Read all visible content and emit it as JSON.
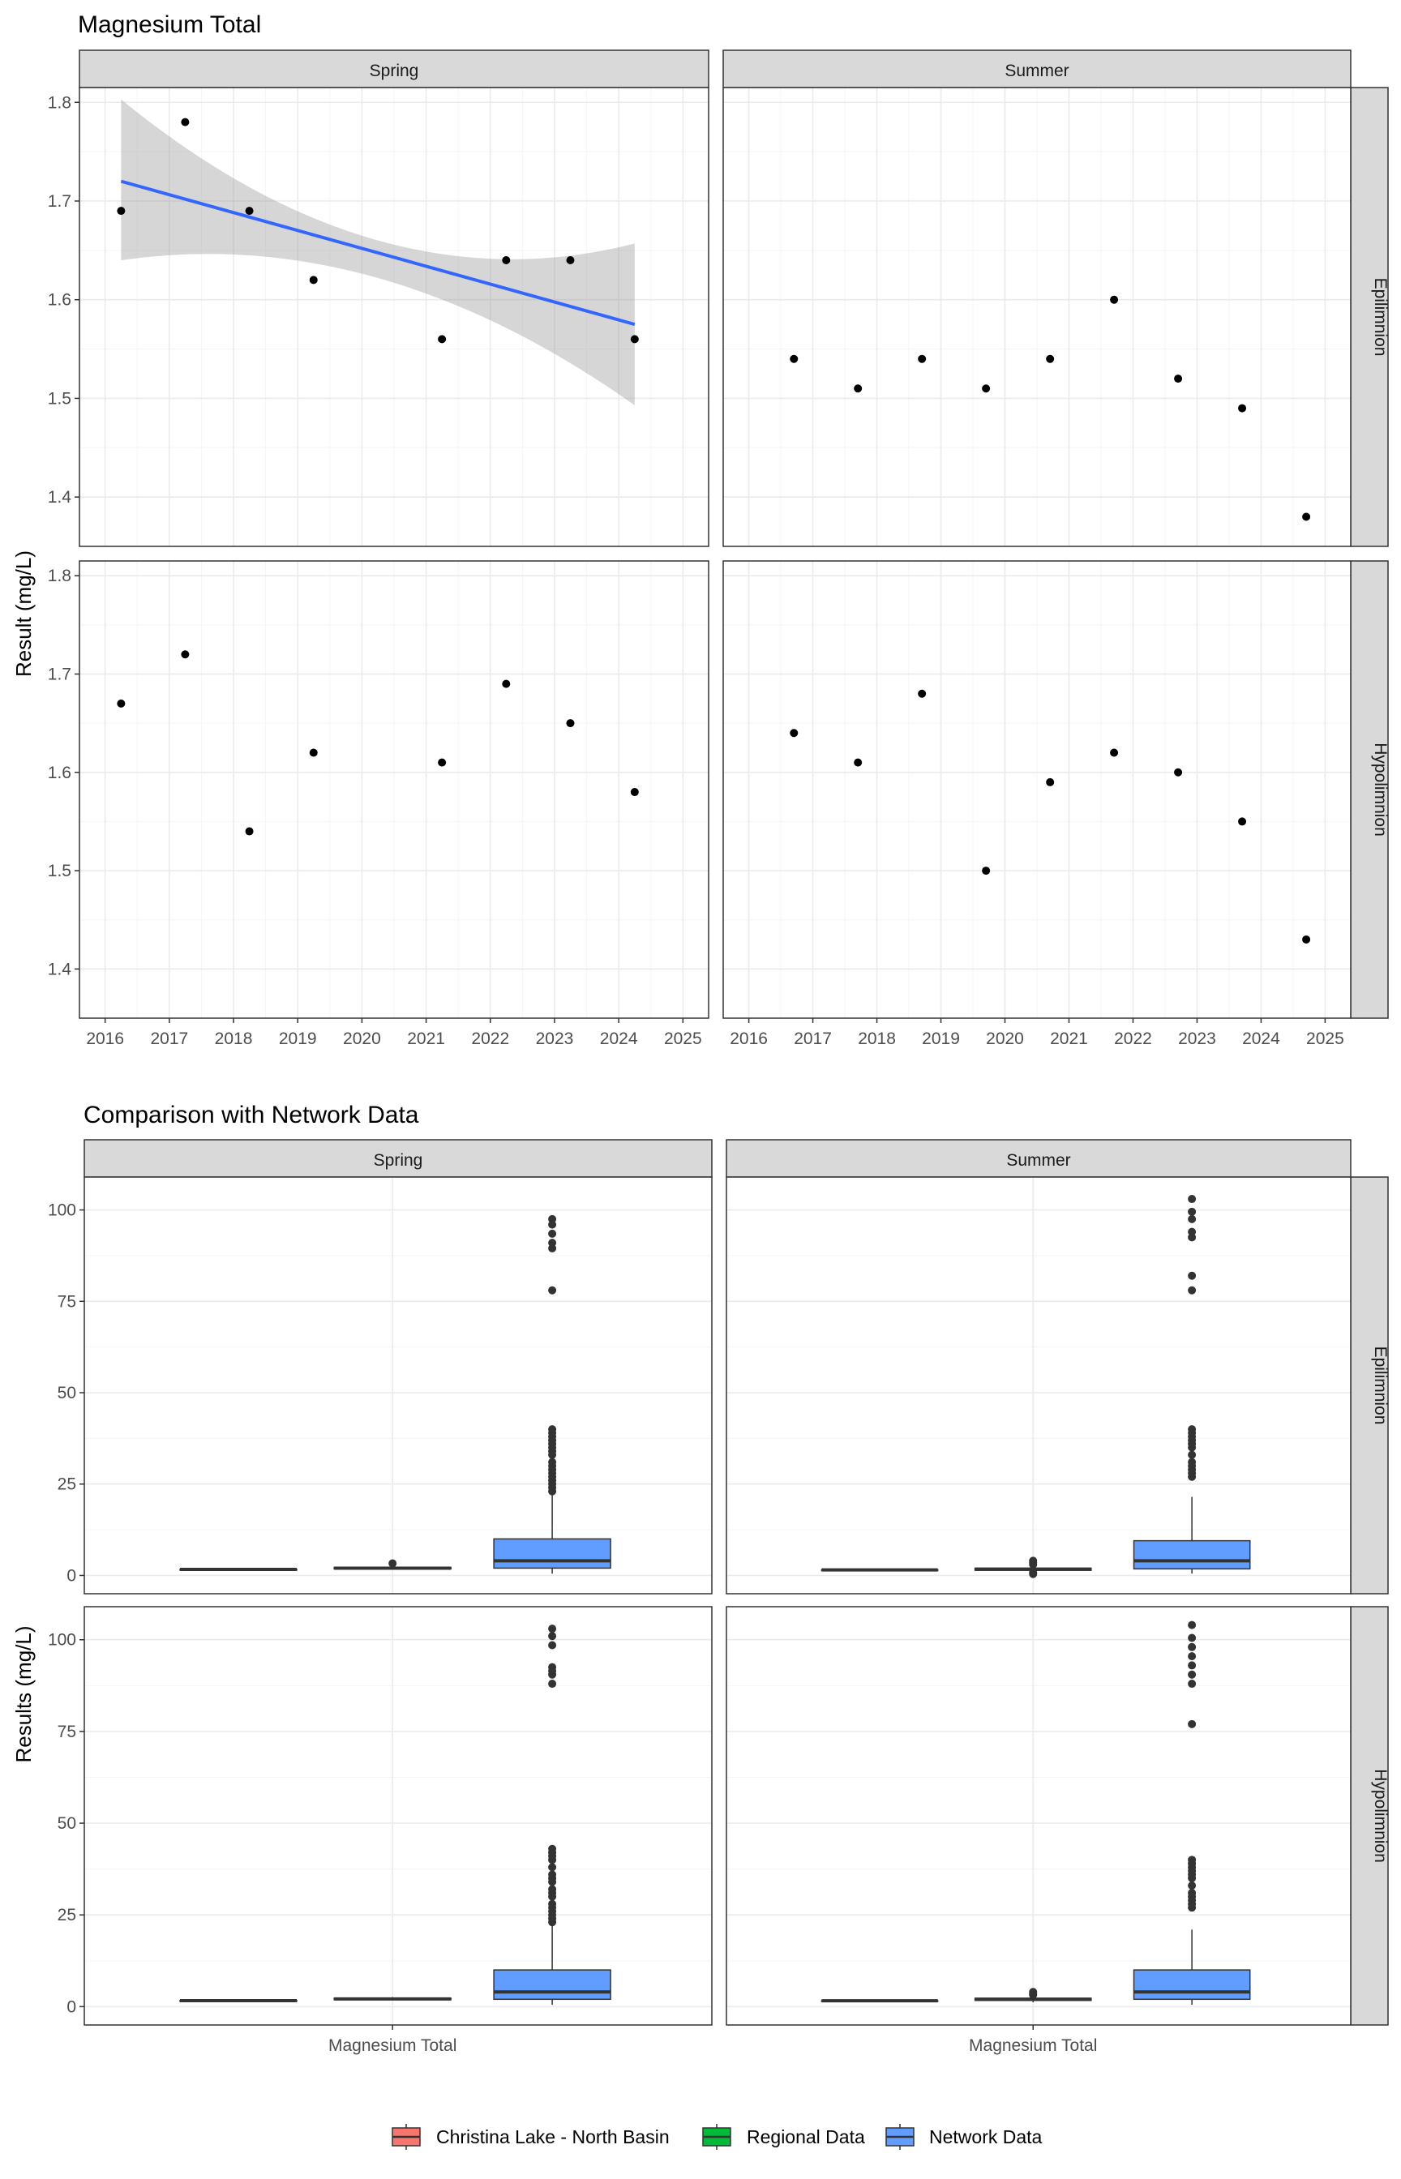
{
  "colors": {
    "panel_border": "#333333",
    "strip_fill": "#d9d9d9",
    "grid_major": "#ebebeb",
    "grid_minor": "#f5f5f5",
    "point": "#000000",
    "outlier": "#333333",
    "trend_line": "#3366ff",
    "confidence_band": "#999999",
    "christina": "#f8766d",
    "regional": "#00ba38",
    "network": "#619cff"
  },
  "chart_data": [
    {
      "type": "scatter",
      "title": "Magnesium Total",
      "ylabel": "Result (mg/L)",
      "xlabel": "",
      "col_facets": [
        "Spring",
        "Summer"
      ],
      "row_facets": [
        "Epilimnion",
        "Hypolimnion"
      ],
      "xlim": [
        2015.6,
        2025.4
      ],
      "ylim": [
        1.35,
        1.815
      ],
      "x_ticks": [
        2016,
        2017,
        2018,
        2019,
        2020,
        2021,
        2022,
        2023,
        2024,
        2025
      ],
      "y_ticks": [
        1.4,
        1.5,
        1.6,
        1.7,
        1.8
      ],
      "y_tick_labels": [
        "1.4",
        "1.5",
        "1.6",
        "1.7",
        "1.8"
      ],
      "grid": true,
      "panels": [
        {
          "col": "Spring",
          "row": "Epilimnion",
          "points": [
            {
              "x": "2016-04-01",
              "y": 1.69
            },
            {
              "x": "2017-04-01",
              "y": 1.78
            },
            {
              "x": "2018-04-01",
              "y": 1.69
            },
            {
              "x": "2019-04-01",
              "y": 1.62
            },
            {
              "x": "2021-04-01",
              "y": 1.56
            },
            {
              "x": "2022-04-01",
              "y": 1.64
            },
            {
              "x": "2023-04-01",
              "y": 1.64
            },
            {
              "x": "2024-04-01",
              "y": 1.56
            }
          ],
          "trend": {
            "x_start": "2016-04-01",
            "x_end": "2024-04-01",
            "y_start": 1.72,
            "y_end": 1.575,
            "ci_start": [
              1.64,
              1.803
            ],
            "ci_mid": [
              1.622,
              1.66
            ],
            "ci_end": [
              1.493,
              1.657
            ]
          }
        },
        {
          "col": "Summer",
          "row": "Epilimnion",
          "points": [
            {
              "x": "2016-09-15",
              "y": 1.54
            },
            {
              "x": "2017-09-15",
              "y": 1.51
            },
            {
              "x": "2018-09-15",
              "y": 1.54
            },
            {
              "x": "2019-09-15",
              "y": 1.51
            },
            {
              "x": "2020-09-15",
              "y": 1.54
            },
            {
              "x": "2021-09-15",
              "y": 1.6
            },
            {
              "x": "2022-09-15",
              "y": 1.52
            },
            {
              "x": "2023-09-15",
              "y": 1.49
            },
            {
              "x": "2024-09-15",
              "y": 1.38
            }
          ]
        },
        {
          "col": "Spring",
          "row": "Hypolimnion",
          "points": [
            {
              "x": "2016-04-01",
              "y": 1.67
            },
            {
              "x": "2017-04-01",
              "y": 1.72
            },
            {
              "x": "2018-04-01",
              "y": 1.54
            },
            {
              "x": "2019-04-01",
              "y": 1.62
            },
            {
              "x": "2021-04-01",
              "y": 1.61
            },
            {
              "x": "2022-04-01",
              "y": 1.69
            },
            {
              "x": "2023-04-01",
              "y": 1.65
            },
            {
              "x": "2024-04-01",
              "y": 1.58
            }
          ]
        },
        {
          "col": "Summer",
          "row": "Hypolimnion",
          "points": [
            {
              "x": "2016-09-15",
              "y": 1.64
            },
            {
              "x": "2017-09-15",
              "y": 1.61
            },
            {
              "x": "2018-09-15",
              "y": 1.68
            },
            {
              "x": "2019-09-15",
              "y": 1.5
            },
            {
              "x": "2020-09-15",
              "y": 1.59
            },
            {
              "x": "2021-09-15",
              "y": 1.62
            },
            {
              "x": "2022-09-15",
              "y": 1.6
            },
            {
              "x": "2023-09-15",
              "y": 1.55
            },
            {
              "x": "2024-09-15",
              "y": 1.43
            }
          ]
        }
      ]
    },
    {
      "type": "box",
      "title": "Comparison with Network Data",
      "ylabel": "Results (mg/L)",
      "xlabel": "",
      "x_tick_label": "Magnesium Total",
      "col_facets": [
        "Spring",
        "Summer"
      ],
      "row_facets": [
        "Epilimnion",
        "Hypolimnion"
      ],
      "ylim": [
        -5,
        109
      ],
      "y_ticks": [
        0,
        25,
        50,
        75,
        100
      ],
      "y_tick_labels": [
        "0",
        "25",
        "50",
        "75",
        "100"
      ],
      "grid": true,
      "legend": {
        "position": "bottom",
        "items": [
          "Christina Lake - North Basin",
          "Regional Data",
          "Network Data"
        ]
      },
      "panels": [
        {
          "col": "Spring",
          "row": "Epilimnion",
          "boxes": [
            {
              "group": "Christina Lake - North Basin",
              "min": 1.56,
              "q1": 1.6,
              "median": 1.64,
              "q3": 1.69,
              "max": 1.78,
              "outliers": []
            },
            {
              "group": "Regional Data",
              "min": 1.6,
              "q1": 1.8,
              "median": 2.0,
              "q3": 2.2,
              "max": 2.5,
              "outliers": [
                3.3
              ]
            },
            {
              "group": "Network Data",
              "min": 0.5,
              "q1": 2.0,
              "median": 4.0,
              "q3": 10.0,
              "max": 22.0,
              "outliers": [
                23.0,
                24.0,
                25.0,
                26.0,
                27.0,
                28.0,
                29.0,
                30.0,
                31.0,
                33.0,
                34.0,
                35.0,
                36.0,
                37.0,
                38.0,
                39.0,
                40.0,
                78.0,
                89.5,
                91.0,
                93.5,
                96.0,
                97.5
              ]
            }
          ]
        },
        {
          "col": "Summer",
          "row": "Epilimnion",
          "boxes": [
            {
              "group": "Christina Lake - North Basin",
              "min": 1.38,
              "q1": 1.5,
              "median": 1.52,
              "q3": 1.54,
              "max": 1.6,
              "outliers": []
            },
            {
              "group": "Regional Data",
              "min": 0.9,
              "q1": 1.4,
              "median": 1.7,
              "q3": 2.0,
              "max": 2.6,
              "outliers": [
                0.4,
                0.8,
                3.0,
                3.5,
                4.0
              ]
            },
            {
              "group": "Network Data",
              "min": 0.5,
              "q1": 1.8,
              "median": 4.0,
              "q3": 9.5,
              "max": 21.5,
              "outliers": [
                27.0,
                28.0,
                29.0,
                30.0,
                31.0,
                33.0,
                35.0,
                36.0,
                37.0,
                38.0,
                39.0,
                40.0,
                78.0,
                82.0,
                92.5,
                94.0,
                97.5,
                99.5,
                103.0
              ]
            }
          ]
        },
        {
          "col": "Spring",
          "row": "Hypolimnion",
          "boxes": [
            {
              "group": "Christina Lake - North Basin",
              "min": 1.54,
              "q1": 1.6,
              "median": 1.635,
              "q3": 1.67,
              "max": 1.72,
              "outliers": []
            },
            {
              "group": "Regional Data",
              "min": 1.7,
              "q1": 1.9,
              "median": 2.1,
              "q3": 2.3,
              "max": 2.6,
              "outliers": []
            },
            {
              "group": "Network Data",
              "min": 0.5,
              "q1": 2.0,
              "median": 4.0,
              "q3": 10.0,
              "max": 22.0,
              "outliers": [
                23.0,
                24.0,
                25.0,
                26.0,
                27.0,
                28.0,
                30.0,
                31.0,
                32.0,
                34.0,
                35.0,
                36.0,
                38.0,
                40.0,
                41.0,
                42.0,
                43.0,
                88.0,
                90.5,
                91.5,
                92.5,
                98.5,
                101.0,
                103.0
              ]
            }
          ]
        },
        {
          "col": "Summer",
          "row": "Hypolimnion",
          "boxes": [
            {
              "group": "Christina Lake - North Basin",
              "min": 1.43,
              "q1": 1.55,
              "median": 1.6,
              "q3": 1.62,
              "max": 1.68,
              "outliers": []
            },
            {
              "group": "Regional Data",
              "min": 1.2,
              "q1": 1.7,
              "median": 2.0,
              "q3": 2.3,
              "max": 2.8,
              "outliers": [
                3.2,
                3.6,
                4.0
              ]
            },
            {
              "group": "Network Data",
              "min": 0.5,
              "q1": 2.0,
              "median": 4.0,
              "q3": 10.0,
              "max": 21.0,
              "outliers": [
                27.0,
                28.0,
                29.0,
                30.0,
                31.0,
                33.0,
                35.0,
                36.0,
                37.0,
                38.0,
                39.0,
                40.0,
                77.0,
                88.0,
                90.5,
                93.0,
                95.5,
                98.0,
                100.5,
                104.0
              ]
            }
          ]
        }
      ]
    }
  ]
}
